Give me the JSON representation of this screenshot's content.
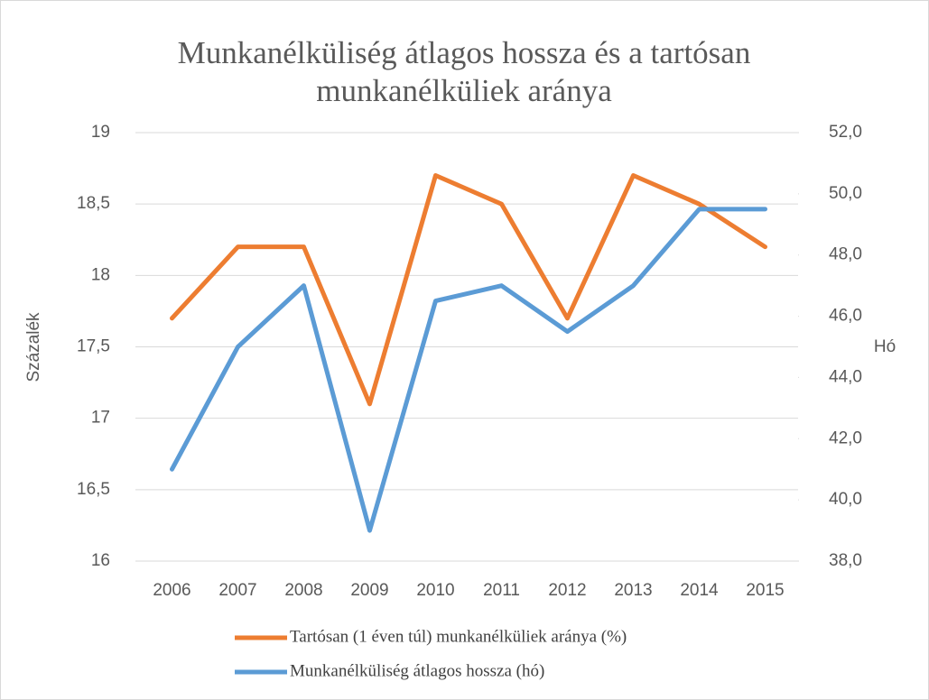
{
  "chart_data": {
    "type": "line",
    "title": "Munkanélküliség átlagos hossza és a tartósan munkanélküliek aránya",
    "ylabel": "Százalék",
    "y2label": "Hó",
    "categories": [
      "2006",
      "2007",
      "2008",
      "2009",
      "2010",
      "2011",
      "2012",
      "2013",
      "2014",
      "2015"
    ],
    "series": [
      {
        "name": "Tartósan (1 éven túl) munkanélküliek aránya (%)",
        "color": "#ed7d31",
        "values": [
          17.7,
          18.2,
          18.2,
          17.1,
          18.7,
          18.5,
          17.7,
          18.7,
          18.5,
          18.2
        ]
      },
      {
        "name": "Munkanélküliség átlagos hossza (hó)",
        "color": "#5b9bd5",
        "axis": "y2",
        "values": [
          41.0,
          45.0,
          47.0,
          39.0,
          46.5,
          47.0,
          45.5,
          47.0,
          49.5,
          49.5
        ]
      }
    ],
    "ylim": [
      16,
      19
    ],
    "yticks": [
      16,
      {
        "value": 16.5,
        "label": "16,5"
      },
      17,
      {
        "value": 17.5,
        "label": "17,5"
      },
      18,
      {
        "value": 18.5,
        "label": "18,5"
      },
      19
    ],
    "y2lim": [
      38,
      52
    ],
    "y2ticks": [
      {
        "value": 38,
        "label": "38,0"
      },
      {
        "value": 40,
        "label": "40,0"
      },
      {
        "value": 42,
        "label": "42,0"
      },
      {
        "value": 44,
        "label": "44,0"
      },
      {
        "value": 46,
        "label": "46,0"
      },
      {
        "value": 48,
        "label": "48,0"
      },
      {
        "value": 50,
        "label": "50,0"
      },
      {
        "value": 52,
        "label": "52,0"
      }
    ],
    "grid": true,
    "legend": "bottom"
  }
}
